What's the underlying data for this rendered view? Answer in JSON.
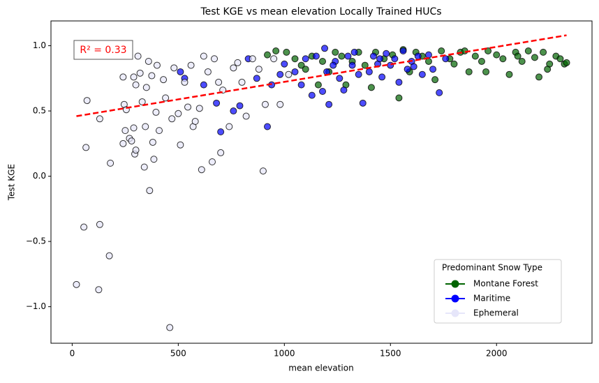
{
  "chart_data": {
    "type": "scatter",
    "title": "Test KGE vs mean elevation Locally Trained HUCs",
    "xlabel": "mean elevation",
    "ylabel": "Test KGE",
    "annotation": "R² = 0.33",
    "legend_title": "Predominant Snow Type",
    "legend_position": "lower right",
    "xlim": [
      -100,
      2450
    ],
    "ylim": [
      -1.28,
      1.19
    ],
    "xticks": [
      0,
      500,
      1000,
      1500,
      2000
    ],
    "yticks": [
      {
        "value": -1.0,
        "label": "−1.0"
      },
      {
        "value": -0.5,
        "label": "−0.5"
      },
      {
        "value": 0.0,
        "label": "0.0"
      },
      {
        "value": 0.5,
        "label": "0.5"
      },
      {
        "value": 1.0,
        "label": "1.0"
      }
    ],
    "series": [
      {
        "name": "Montane Forest",
        "color": "#006400",
        "x": [
          920,
          960,
          1010,
          1050,
          1080,
          1100,
          1130,
          1160,
          1180,
          1210,
          1240,
          1270,
          1290,
          1320,
          1350,
          1380,
          1410,
          1430,
          1470,
          1510,
          1540,
          1560,
          1590,
          1620,
          1650,
          1680,
          1710,
          1740,
          1780,
          1800,
          1830,
          1870,
          1900,
          1930,
          1960,
          2000,
          2030,
          2060,
          2090,
          2120,
          2150,
          2180,
          2200,
          2220,
          2250,
          2280,
          2300,
          2320,
          2330,
          1850,
          1950,
          2100,
          2240
        ],
        "values": [
          0.93,
          0.96,
          0.95,
          0.9,
          0.85,
          0.82,
          0.92,
          0.7,
          0.88,
          0.8,
          0.95,
          0.92,
          0.7,
          0.88,
          0.95,
          0.85,
          0.68,
          0.95,
          0.9,
          0.93,
          0.6,
          0.97,
          0.8,
          0.95,
          0.92,
          0.88,
          0.74,
          0.96,
          0.9,
          0.86,
          0.95,
          0.8,
          0.92,
          0.88,
          0.96,
          0.93,
          0.9,
          0.78,
          0.95,
          0.88,
          0.96,
          0.91,
          0.76,
          0.95,
          0.86,
          0.92,
          0.9,
          0.86,
          0.87,
          0.96,
          0.8,
          0.92,
          0.82
        ]
      },
      {
        "name": "Maritime",
        "color": "#0000ff",
        "x": [
          510,
          530,
          620,
          680,
          700,
          760,
          790,
          830,
          870,
          920,
          940,
          980,
          1000,
          1050,
          1080,
          1100,
          1150,
          1180,
          1200,
          1210,
          1240,
          1260,
          1300,
          1320,
          1350,
          1370,
          1400,
          1420,
          1440,
          1460,
          1480,
          1500,
          1520,
          1540,
          1560,
          1580,
          1600,
          1630,
          1650,
          1680,
          1700,
          1730,
          1760,
          1190,
          1280,
          1130,
          1230,
          1330,
          1450,
          1610
        ],
        "values": [
          0.8,
          0.75,
          0.7,
          0.56,
          0.34,
          0.5,
          0.54,
          0.9,
          0.75,
          0.38,
          0.7,
          0.78,
          0.86,
          0.8,
          0.7,
          0.9,
          0.92,
          0.65,
          0.8,
          0.55,
          0.88,
          0.75,
          0.92,
          0.85,
          0.78,
          0.56,
          0.8,
          0.92,
          0.86,
          0.76,
          0.94,
          0.85,
          0.9,
          0.72,
          0.96,
          0.82,
          0.88,
          0.92,
          0.78,
          0.93,
          0.82,
          0.64,
          0.9,
          0.98,
          0.66,
          0.62,
          0.85,
          0.95,
          0.9,
          0.84
        ]
      },
      {
        "name": "Ephemeral",
        "color": "#e6e6fa",
        "x": [
          20,
          55,
          65,
          70,
          125,
          130,
          130,
          175,
          180,
          240,
          240,
          245,
          250,
          255,
          270,
          280,
          290,
          290,
          295,
          300,
          300,
          310,
          320,
          330,
          340,
          345,
          350,
          360,
          365,
          375,
          380,
          385,
          395,
          400,
          410,
          430,
          440,
          460,
          470,
          480,
          500,
          510,
          530,
          545,
          560,
          570,
          580,
          600,
          610,
          620,
          640,
          660,
          670,
          690,
          700,
          710,
          740,
          760,
          780,
          800,
          820,
          850,
          880,
          900,
          910,
          950,
          980,
          1020
        ],
        "values": [
          -0.83,
          -0.39,
          0.22,
          0.58,
          -0.87,
          -0.37,
          0.44,
          -0.61,
          0.1,
          0.25,
          0.76,
          0.55,
          0.35,
          0.51,
          0.29,
          0.27,
          0.37,
          0.76,
          0.17,
          0.7,
          0.2,
          0.92,
          0.79,
          0.57,
          0.07,
          0.38,
          0.68,
          0.88,
          -0.11,
          0.77,
          0.26,
          0.13,
          0.49,
          0.85,
          0.35,
          0.74,
          0.6,
          -1.16,
          0.44,
          0.83,
          0.48,
          0.24,
          0.72,
          0.53,
          0.85,
          0.38,
          0.42,
          0.52,
          0.05,
          0.92,
          0.8,
          0.11,
          0.9,
          0.72,
          0.18,
          0.66,
          0.38,
          0.83,
          0.87,
          0.72,
          0.46,
          0.9,
          0.82,
          0.04,
          0.55,
          0.9,
          0.55,
          0.78
        ]
      }
    ],
    "trend": {
      "x": [
        20,
        2330
      ],
      "values": [
        0.46,
        1.08
      ],
      "color": "#ff0000"
    }
  }
}
